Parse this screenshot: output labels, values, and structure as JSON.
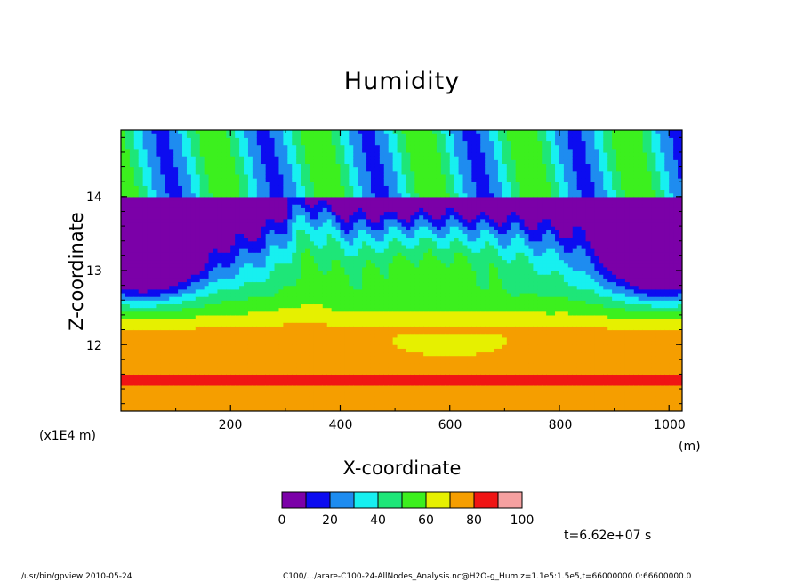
{
  "chart_data": {
    "type": "heatmap",
    "title": "Humidity",
    "xlabel": "X-coordinate",
    "ylabel": "Z-coordinate",
    "x_unit": "(m)",
    "y_scale_label": "(x1E4 m)",
    "xlim": [
      0,
      1024
    ],
    "ylim": [
      11.1,
      14.9
    ],
    "x_ticks": [
      "200",
      "400",
      "600",
      "800",
      "1000"
    ],
    "x_tick_values": [
      200,
      400,
      600,
      800,
      1000
    ],
    "y_ticks": [
      "12",
      "13",
      "14"
    ],
    "y_tick_values": [
      12,
      13,
      14
    ],
    "colorbar": {
      "levels": [
        0,
        10,
        20,
        30,
        40,
        50,
        60,
        70,
        80,
        90,
        100
      ],
      "tick_labels": [
        "0",
        "20",
        "40",
        "60",
        "80",
        "100"
      ],
      "colors": [
        "#7b00a8",
        "#0c0cf0",
        "#1e8cf0",
        "#17f0f0",
        "#1ee678",
        "#3cf01e",
        "#e6f000",
        "#f59e00",
        "#f01414",
        "#f5a0a0"
      ]
    },
    "z_approximation": {
      "description": "humidity (%) by height band, left / center / right of domain",
      "bands": [
        {
          "z": [
            11.1,
            11.3
          ],
          "value": 75
        },
        {
          "z": [
            11.3,
            11.5
          ],
          "value": 78
        },
        {
          "z": [
            11.5,
            11.6
          ],
          "value": 85
        },
        {
          "z": [
            11.6,
            12.4
          ],
          "value": 75
        },
        {
          "z": [
            12.4,
            12.7
          ],
          "value": 55
        },
        {
          "z": [
            12.7,
            13.2
          ],
          "value": 20
        },
        {
          "z": [
            13.2,
            13.8
          ],
          "value": 10
        },
        {
          "z": [
            13.8,
            14.9
          ],
          "value": 45
        }
      ]
    }
  },
  "footer": {
    "time": "t=6.62e+07 s",
    "program": "/usr/bin/gpview   2010-05-24",
    "source": "C100/.../arare-C100-24-AllNodes_Analysis.nc@H2O-g_Hum,z=1.1e5:1.5e5,t=66000000.0:66600000.0"
  }
}
